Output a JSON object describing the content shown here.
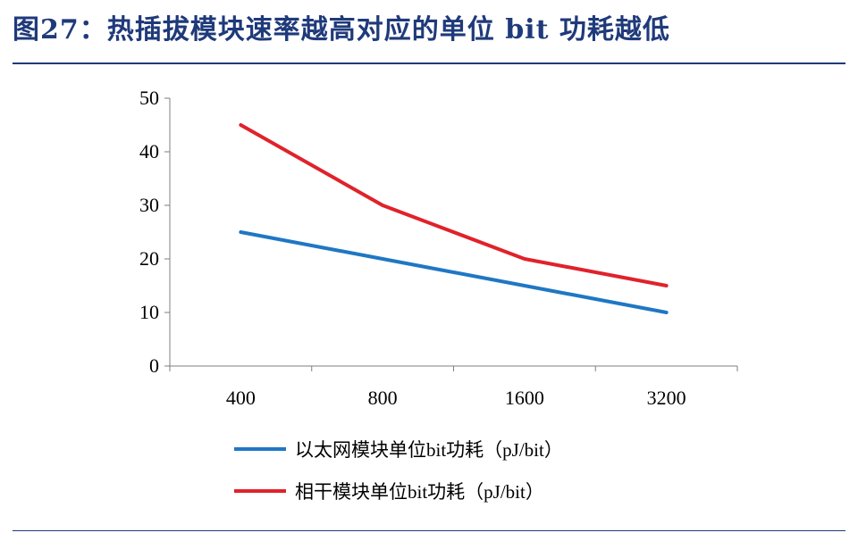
{
  "page": {
    "title": "图27：热插拔模块速率越高对应的单位 bit 功耗越低"
  },
  "chart_data": {
    "type": "line",
    "categories": [
      "400",
      "800",
      "1600",
      "3200"
    ],
    "series": [
      {
        "name": "以太网模块单位bit功耗（pJ/bit）",
        "values": [
          25,
          20,
          15,
          10
        ],
        "color": "#1f77c4"
      },
      {
        "name": "相干模块单位bit功耗（pJ/bit）",
        "values": [
          45,
          30,
          20,
          15
        ],
        "color": "#e0222b"
      }
    ],
    "ylim": [
      0,
      50
    ],
    "yticks": [
      0,
      10,
      20,
      30,
      40,
      50
    ],
    "grid": false,
    "legend_position": "bottom"
  }
}
